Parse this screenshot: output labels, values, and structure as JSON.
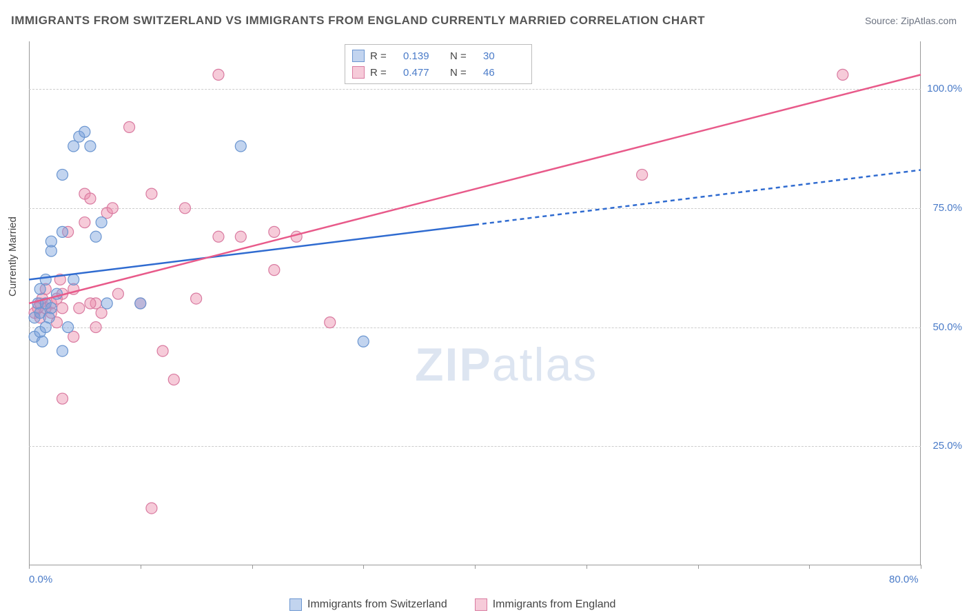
{
  "title": "IMMIGRANTS FROM SWITZERLAND VS IMMIGRANTS FROM ENGLAND CURRENTLY MARRIED CORRELATION CHART",
  "source": "Source: ZipAtlas.com",
  "y_axis_label": "Currently Married",
  "watermark": "ZIPatlas",
  "chart": {
    "type": "scatter",
    "xlim": [
      0,
      80
    ],
    "ylim": [
      0,
      110
    ],
    "y_gridlines": [
      25,
      50,
      75,
      100
    ],
    "y_tick_labels": [
      "25.0%",
      "50.0%",
      "75.0%",
      "100.0%"
    ],
    "x_ticks": [
      0,
      10,
      20,
      30,
      40,
      50,
      60,
      70,
      80
    ],
    "x_tick_labels": [
      "0.0%",
      "80.0%"
    ],
    "background": "#ffffff",
    "grid_color": "#cccccc",
    "marker_radius": 8,
    "marker_stroke_width": 1.2,
    "line_width": 2.5
  },
  "series": {
    "switzerland": {
      "label": "Immigrants from Switzerland",
      "fill": "rgba(120,160,220,0.45)",
      "stroke": "#6a95d0",
      "trend_color": "#2f6bd0",
      "trend": {
        "x1": 0,
        "y1": 60,
        "x2": 80,
        "y2": 83
      },
      "solid_until_x": 40,
      "points": [
        [
          0.5,
          48
        ],
        [
          0.5,
          52
        ],
        [
          0.8,
          55
        ],
        [
          1,
          58
        ],
        [
          1,
          49
        ],
        [
          1,
          53
        ],
        [
          1.5,
          55
        ],
        [
          1.5,
          60
        ],
        [
          1.5,
          50
        ],
        [
          2,
          54
        ],
        [
          2,
          66
        ],
        [
          2,
          68
        ],
        [
          3,
          82
        ],
        [
          3,
          70
        ],
        [
          3.5,
          50
        ],
        [
          4,
          88
        ],
        [
          4.5,
          90
        ],
        [
          5,
          91
        ],
        [
          5.5,
          88
        ],
        [
          6,
          69
        ],
        [
          6.5,
          72
        ],
        [
          7,
          55
        ],
        [
          3,
          45
        ],
        [
          10,
          55
        ],
        [
          19,
          88
        ],
        [
          30,
          47
        ],
        [
          1.2,
          47
        ],
        [
          1.8,
          52
        ],
        [
          2.5,
          57
        ],
        [
          4,
          60
        ]
      ]
    },
    "england": {
      "label": "Immigrants from England",
      "fill": "rgba(235,140,170,0.45)",
      "stroke": "#d97aa0",
      "trend_color": "#e85a8a",
      "trend": {
        "x1": 0,
        "y1": 55,
        "x2": 80,
        "y2": 103
      },
      "solid_until_x": 80,
      "points": [
        [
          0.5,
          53
        ],
        [
          0.8,
          54
        ],
        [
          1,
          55
        ],
        [
          1,
          52
        ],
        [
          1.2,
          56
        ],
        [
          1.5,
          54
        ],
        [
          1.5,
          58
        ],
        [
          2,
          55
        ],
        [
          2,
          53
        ],
        [
          2.5,
          56
        ],
        [
          2.5,
          51
        ],
        [
          3,
          54
        ],
        [
          3,
          57
        ],
        [
          3.5,
          70
        ],
        [
          4,
          58
        ],
        [
          4.5,
          54
        ],
        [
          5,
          78
        ],
        [
          5,
          72
        ],
        [
          5.5,
          77
        ],
        [
          6,
          55
        ],
        [
          6.5,
          53
        ],
        [
          7,
          74
        ],
        [
          7.5,
          75
        ],
        [
          8,
          57
        ],
        [
          9,
          92
        ],
        [
          10,
          55
        ],
        [
          11,
          78
        ],
        [
          12,
          45
        ],
        [
          13,
          39
        ],
        [
          14,
          75
        ],
        [
          3,
          35
        ],
        [
          17,
          69
        ],
        [
          19,
          69
        ],
        [
          22,
          62
        ],
        [
          22,
          70
        ],
        [
          24,
          69
        ],
        [
          27,
          51
        ],
        [
          15,
          56
        ],
        [
          6,
          50
        ],
        [
          55,
          82
        ],
        [
          73,
          103
        ],
        [
          11,
          12
        ],
        [
          17,
          103
        ],
        [
          4,
          48
        ],
        [
          5.5,
          55
        ],
        [
          2.8,
          60
        ]
      ]
    }
  },
  "legend_top": [
    {
      "series": "switzerland",
      "r_label": "R =",
      "r": "0.139",
      "n_label": "N =",
      "n": "30"
    },
    {
      "series": "england",
      "r_label": "R =",
      "r": "0.477",
      "n_label": "N =",
      "n": "46"
    }
  ]
}
